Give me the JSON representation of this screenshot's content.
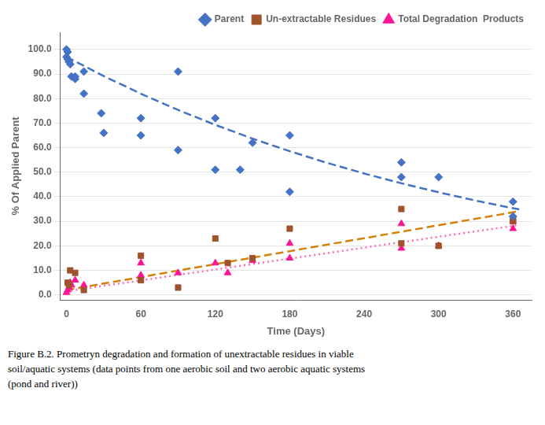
{
  "chart_data": {
    "type": "scatter",
    "xlabel": "Time (Days)",
    "ylabel": "% Of Applied Parent",
    "series": [
      {
        "name": "Parent",
        "color": "#4472C4",
        "marker": "diamond",
        "x": [
          0,
          0,
          1,
          1,
          2,
          3,
          4,
          7,
          7,
          14,
          14,
          28,
          30,
          60,
          60,
          90,
          90,
          120,
          120,
          140,
          150,
          180,
          180,
          270,
          270,
          300,
          360,
          360
        ],
        "values": [
          97,
          100,
          96,
          99,
          95,
          94,
          89,
          88,
          89,
          82,
          91,
          74,
          66,
          72,
          65,
          91,
          59,
          51,
          72,
          51,
          62,
          65,
          42,
          48,
          54,
          48,
          38,
          32
        ]
      },
      {
        "name": "Un-extractable Residues",
        "color": "#A0522D",
        "marker": "square",
        "x": [
          1,
          2,
          3,
          7,
          14,
          60,
          60,
          90,
          120,
          130,
          150,
          180,
          270,
          270,
          300,
          360,
          360
        ],
        "values": [
          5,
          4,
          10,
          9,
          2,
          16,
          6,
          3,
          23,
          13,
          15,
          27,
          35,
          21,
          20,
          31,
          30
        ]
      },
      {
        "name": "Total Degradation  Products",
        "color": "#FF1493",
        "marker": "triangle",
        "x": [
          0,
          1,
          2,
          3,
          4,
          7,
          14,
          60,
          60,
          90,
          120,
          130,
          150,
          180,
          180,
          270,
          270,
          300,
          360,
          360
        ],
        "values": [
          1,
          2,
          3,
          5,
          4,
          6,
          4,
          13,
          8,
          9,
          13,
          9,
          14,
          21,
          15,
          29,
          19,
          20,
          27,
          30
        ]
      },
      {
        "type": "line",
        "color": "#4472C4",
        "line_style": "dashed",
        "x": [
          0,
          30,
          60,
          90,
          120,
          150,
          180,
          210,
          240,
          270,
          300,
          330,
          360,
          365
        ],
        "values": [
          97.0,
          89.171,
          81.975,
          75.359,
          69.277,
          63.686,
          58.546,
          53.821,
          49.478,
          45.484,
          41.814,
          38.439,
          35.337,
          34.845
        ]
      },
      {
        "type": "line",
        "color": "#D4820A",
        "line_style": "dashed",
        "x": [
          0,
          365
        ],
        "values": [
          2.0,
          34.12
        ]
      },
      {
        "type": "line",
        "color": "#FF69B4",
        "line_style": "dotted",
        "x": [
          0,
          365
        ],
        "values": [
          1.5,
          28.51
        ]
      }
    ],
    "xlim": [
      -5,
      375
    ],
    "ylim": [
      -2,
      107
    ],
    "xticks": [
      0,
      60,
      120,
      180,
      240,
      300,
      360
    ],
    "yticks": [
      {
        "value": 0,
        "label": "0.0"
      },
      {
        "value": 10,
        "label": "10.0"
      },
      {
        "value": 20,
        "label": "20.0"
      },
      {
        "value": 30,
        "label": "30.0"
      },
      {
        "value": 40,
        "label": "40.0"
      },
      {
        "value": 50,
        "label": "50.0"
      },
      {
        "value": 60,
        "label": "60.0"
      },
      {
        "value": 70,
        "label": "70.0"
      },
      {
        "value": 80,
        "label": "80.0"
      },
      {
        "value": 90,
        "label": "90.0"
      },
      {
        "value": 100,
        "label": "100.0"
      }
    ],
    "grid": "y",
    "legend": "upper right",
    "caption": [
      "Figure B.2. Prometryn degradation and formation of unextractable residues in viable",
      "soil/aquatic systems (data points from one aerobic soil and two aerobic aquatic systems",
      "(pond and river))"
    ]
  }
}
